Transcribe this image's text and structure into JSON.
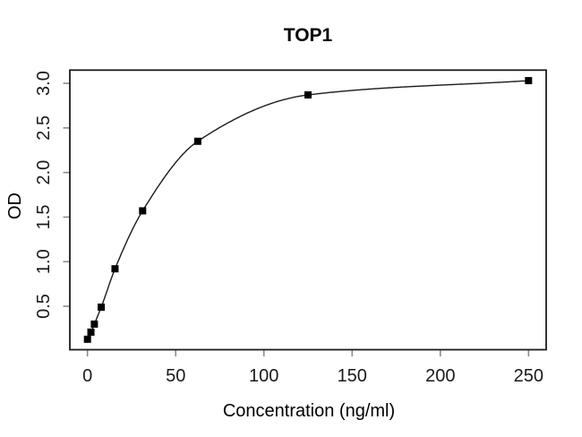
{
  "chart_data": {
    "type": "scatter",
    "title": "TOP1",
    "xlabel": "Concentration (ng/ml)",
    "ylabel": "OD",
    "x": [
      0,
      1.95,
      3.9,
      7.8,
      15.6,
      31.25,
      62.5,
      125,
      250
    ],
    "y": [
      0.13,
      0.21,
      0.3,
      0.49,
      0.92,
      1.57,
      2.35,
      2.87,
      3.03
    ],
    "series_name": "standard-curve",
    "marker": "filled-square",
    "curve": "smooth-4pl-fit-line",
    "x_ticks": [
      0,
      50,
      100,
      150,
      200,
      250
    ],
    "x_tick_labels": [
      "0",
      "50",
      "100",
      "150",
      "200",
      "250"
    ],
    "y_ticks": [
      0.5,
      1.0,
      1.5,
      2.0,
      2.5,
      3.0
    ],
    "y_tick_labels": [
      "0.5",
      "1.0",
      "1.5",
      "2.0",
      "2.5",
      "3.0"
    ],
    "xlim": [
      -10,
      260
    ],
    "ylim": [
      0.013,
      3.148
    ],
    "grid": false,
    "legend": "none",
    "background_color": "#ffffff",
    "line_color": "#1b1b1b",
    "marker_color": "#000000",
    "box_color": "#1b1b1b",
    "tick_color": "#8c8c8c"
  }
}
